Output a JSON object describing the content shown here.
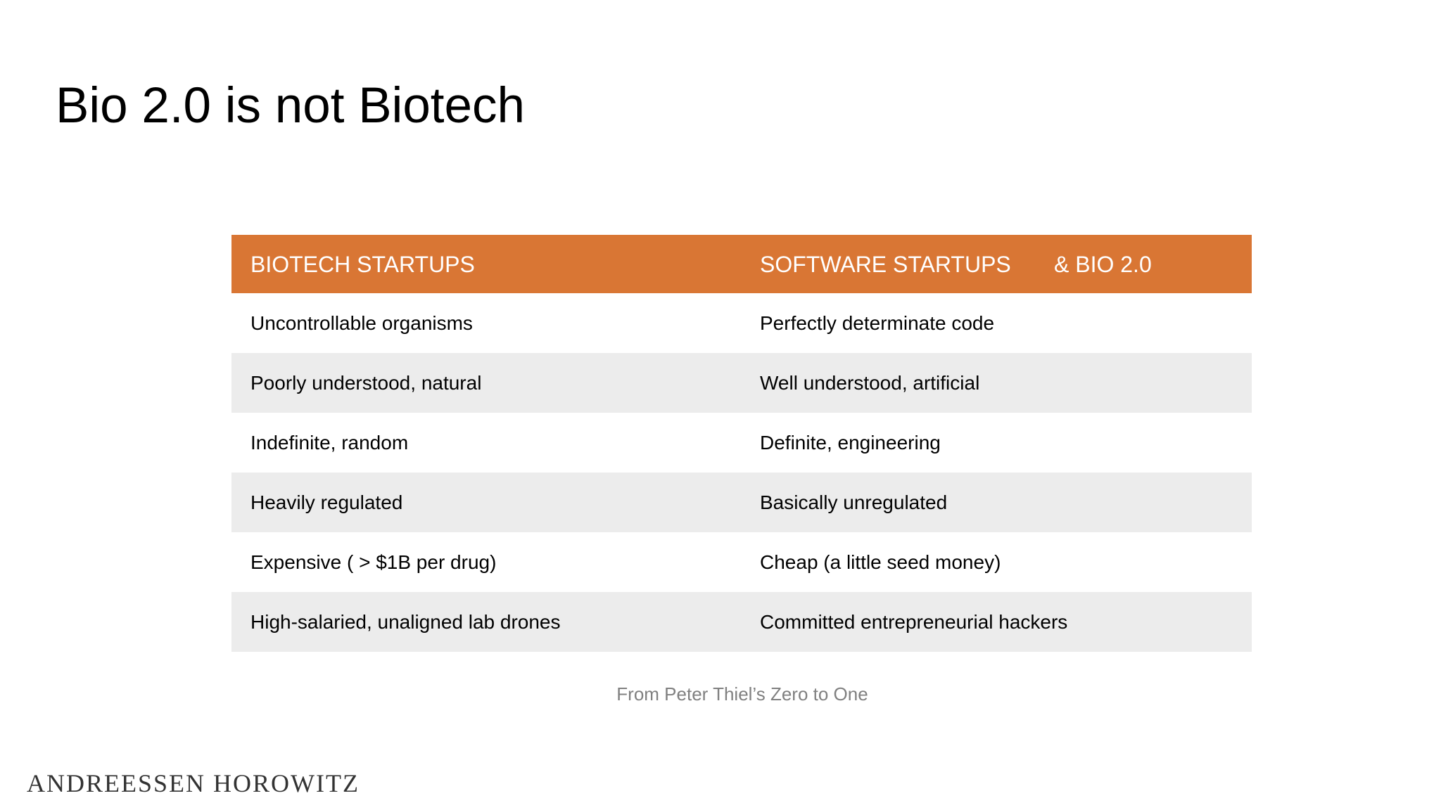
{
  "slide": {
    "title": "Bio 2.0 is not Biotech"
  },
  "table": {
    "header": {
      "left": "BIOTECH STARTUPS",
      "right": "SOFTWARE STARTUPS",
      "right_extra": "& BIO 2.0"
    },
    "rows": [
      {
        "left": "Uncontrollable organisms",
        "right": "Perfectly determinate code"
      },
      {
        "left": "Poorly understood, natural",
        "right": "Well understood, artificial"
      },
      {
        "left": "Indefinite, random",
        "right": "Definite, engineering"
      },
      {
        "left": "Heavily regulated",
        "right": "Basically unregulated"
      },
      {
        "left": "Expensive ( > $1B per drug)",
        "right": "Cheap (a little seed money)"
      },
      {
        "left": "High-salaried, unaligned lab drones",
        "right": "Committed entrepreneurial hackers"
      }
    ]
  },
  "source_note": "From Peter Thiel’s Zero to One",
  "logo": {
    "text": "ANDREESSEN HOROWITZ"
  },
  "colors": {
    "header_background": "#D97634",
    "header_text": "#FFFFFF",
    "row_shade": "#ECECEC",
    "source_text": "#808080"
  }
}
